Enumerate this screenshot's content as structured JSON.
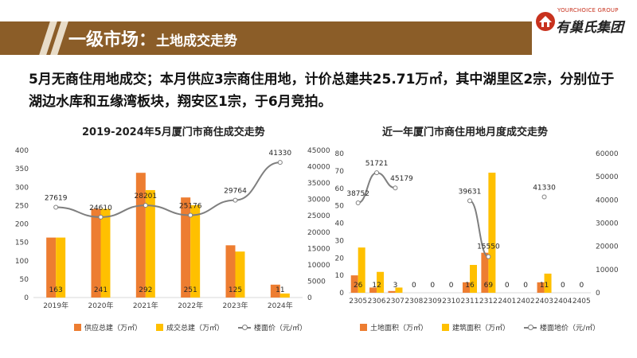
{
  "header": {
    "title": "一级市场：",
    "subtitle": "土地成交走势"
  },
  "logo": {
    "en": "YOURCHOICE GROUP",
    "cn": "有巢氏集团"
  },
  "description": "5月无商住用地成交；本月供应3宗商住用地，计价总建共25.71万㎡，其中湖里区2宗，分别位于湖边水库和五缘湾板块，翔安区1宗，于6月竞拍。",
  "colors": {
    "orange": "#ed7d31",
    "yellow": "#ffc000",
    "line": "#7f7f7f",
    "header": "#8b5d28"
  },
  "chart_data": [
    {
      "type": "bar",
      "title": "2019-2024年5月厦门市商住成交走势",
      "categories": [
        "2019年",
        "2020年",
        "2021年",
        "2022年",
        "2023年",
        "2024年"
      ],
      "series": [
        {
          "name": "供应总建（万㎡）",
          "values": [
            163,
            241,
            339,
            272,
            142,
            35
          ]
        },
        {
          "name": "成交总建（万㎡）",
          "values": [
            163,
            241,
            292,
            251,
            125,
            11
          ]
        },
        {
          "name": "楼面价（元/㎡）",
          "values": [
            27619,
            24610,
            28201,
            25176,
            29764,
            41330
          ],
          "axis": "right"
        }
      ],
      "bar_labels": [
        "163",
        "241",
        "292",
        "251",
        "125",
        "11"
      ],
      "line_labels": [
        "27619",
        "24610",
        "28201",
        "25176",
        "29764",
        "41330"
      ],
      "ylim": [
        0,
        400
      ],
      "yticks": [
        "0",
        "50",
        "100",
        "150",
        "200",
        "250",
        "300",
        "350",
        "400"
      ],
      "y2lim": [
        0,
        45000
      ],
      "y2ticks": [
        "0",
        "5000",
        "10000",
        "15000",
        "20000",
        "25000",
        "30000",
        "35000",
        "40000",
        "45000"
      ],
      "legend": "bottom"
    },
    {
      "type": "bar",
      "title": "近一年厦门市商住用地月度成交走势",
      "categories": [
        "2305",
        "2306",
        "2307",
        "2308",
        "2309",
        "2310",
        "2311",
        "2312",
        "2401",
        "2402",
        "2403",
        "2404",
        "2405"
      ],
      "series": [
        {
          "name": "土地面积（万㎡）",
          "values": [
            10,
            3,
            1,
            0,
            0,
            0,
            6,
            23,
            0,
            0,
            6,
            0,
            0
          ]
        },
        {
          "name": "建筑面积（万㎡）",
          "values": [
            26,
            12,
            3,
            0,
            0,
            0,
            16,
            69,
            0,
            0,
            11,
            0,
            0
          ]
        },
        {
          "name": "楼面地价（元/㎡）",
          "values": [
            38752,
            51721,
            45179,
            null,
            null,
            null,
            39631,
            15550,
            null,
            null,
            41330,
            null,
            null
          ],
          "axis": "right"
        }
      ],
      "bar_labels": [
        "26",
        "12",
        "3",
        "0",
        "0",
        "0",
        "16",
        "69",
        "0",
        "0",
        "11",
        "0",
        "0"
      ],
      "line_labels": [
        "38752",
        "51721",
        "45179",
        "",
        "",
        "",
        "39631",
        "15550",
        "",
        "",
        "41330",
        "",
        ""
      ],
      "ylim": [
        0,
        80
      ],
      "yticks": [
        "0",
        "10",
        "20",
        "30",
        "40",
        "50",
        "60",
        "70",
        "80"
      ],
      "y2lim": [
        0,
        60000
      ],
      "y2ticks": [
        "0",
        "10000",
        "20000",
        "30000",
        "40000",
        "50000",
        "60000"
      ],
      "legend": "bottom"
    }
  ]
}
